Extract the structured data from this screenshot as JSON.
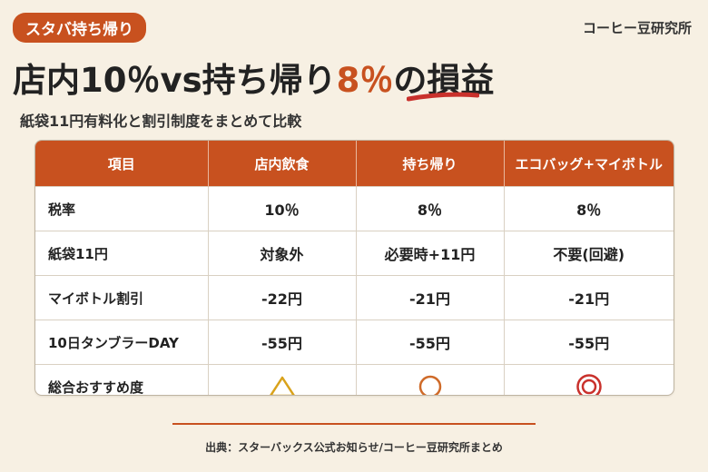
{
  "tag": "スタバ持ち帰り",
  "brand": "コーヒー豆研究所",
  "title": {
    "part1": "店内10％vs持ち帰り",
    "highlight": "8％",
    "part2": "の損益"
  },
  "subtitle": "紙袋11円有料化と割引制度をまとめて比較",
  "table": {
    "headers": [
      "項目",
      "店内飲食",
      "持ち帰り",
      "エコバッグ+マイボトル"
    ],
    "rows": [
      {
        "label": "税率",
        "cells": [
          "10％",
          "8％",
          "8％"
        ]
      },
      {
        "label": "紙袋11円",
        "cells": [
          "対象外",
          "必要時+11円",
          "不要(回避)"
        ]
      },
      {
        "label": "マイボトル割引",
        "cells": [
          "-22円",
          "-21円",
          "-21円"
        ]
      },
      {
        "label": "10日タンブラーDAY",
        "cells": [
          "-55円",
          "-55円",
          "-55円"
        ]
      },
      {
        "label": "総合おすすめ度",
        "cells": [
          "",
          "",
          ""
        ]
      }
    ],
    "rating_icons": [
      "triangle-icon",
      "circle-icon",
      "double-circle-icon"
    ]
  },
  "colors": {
    "accent": "#c8511f",
    "background": "#f7f0e3",
    "triangle": "#d9a21b",
    "circle": "#cf6a28",
    "double_circle": "#c9312c"
  },
  "source": "出典：スターバックス公式お知らせ/コーヒー豆研究所まとめ"
}
